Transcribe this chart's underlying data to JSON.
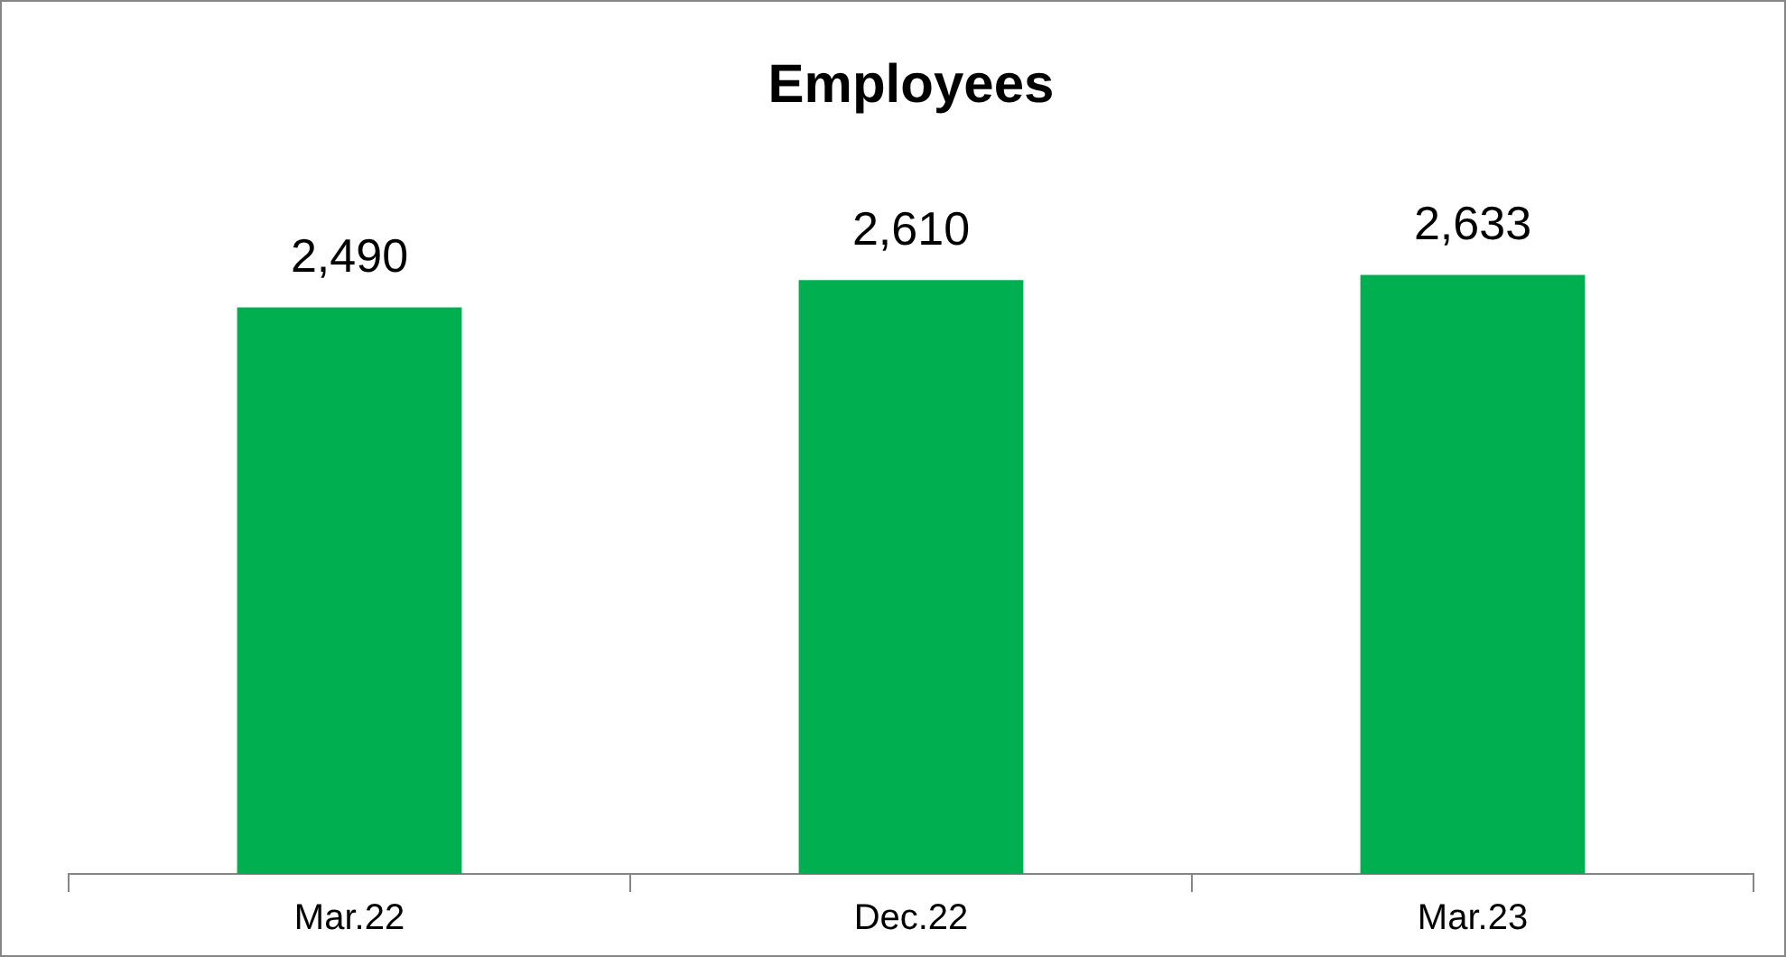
{
  "chart_data": {
    "type": "bar",
    "title": "Employees",
    "categories": [
      "Mar.22",
      "Dec.22",
      "Mar.23"
    ],
    "values": [
      2490,
      2610,
      2633
    ],
    "value_labels": [
      "2,490",
      "2,610",
      "2,633"
    ],
    "color": "#00b050",
    "grid": false,
    "legend": false
  }
}
